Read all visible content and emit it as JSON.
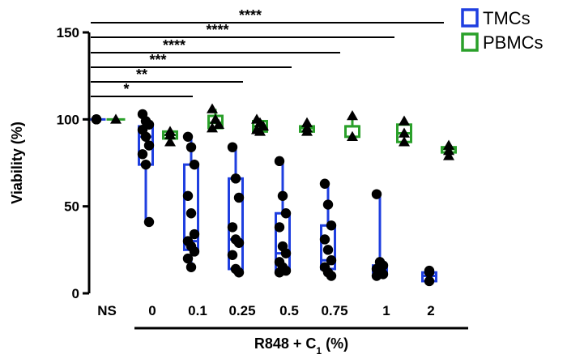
{
  "chart_data": {
    "type": "box",
    "ylabel": "Viability (%)",
    "xlabel_main": "R848 + C",
    "xlabel_sub": "1",
    "xlabel_unit": " (%)",
    "ylim": [
      0,
      150
    ],
    "yticks": [
      0,
      50,
      100,
      150
    ],
    "categories": [
      "NS",
      "0",
      "0.1",
      "0.25",
      "0.5",
      "0.75",
      "1",
      "2"
    ],
    "legend": [
      {
        "name": "TMCs",
        "color": "#1f3fe0"
      },
      {
        "name": "PBMCs",
        "color": "#2aa02a"
      }
    ],
    "series": [
      {
        "name": "TMCs",
        "color": "#1f3fe0",
        "marker": "circle",
        "groups": [
          {
            "min": 100,
            "q1": 100,
            "median": 100,
            "q3": 100,
            "max": 100,
            "points": [
              100,
              100,
              100
            ]
          },
          {
            "min": 41,
            "q1": 74,
            "median": 90,
            "q3": 96,
            "max": 103,
            "points": [
              103,
              99,
              97,
              94,
              90,
              85,
              80,
              74,
              41
            ]
          },
          {
            "min": 15,
            "q1": 25,
            "median": 30,
            "q3": 74,
            "max": 90,
            "points": [
              90,
              84,
              74,
              56,
              46,
              34,
              30,
              27,
              24,
              20,
              15
            ]
          },
          {
            "min": 12,
            "q1": 14,
            "median": 31,
            "q3": 66,
            "max": 84,
            "points": [
              84,
              66,
              55,
              38,
              31,
              29,
              22,
              14,
              12
            ]
          },
          {
            "min": 12,
            "q1": 13,
            "median": 23,
            "q3": 46,
            "max": 76,
            "points": [
              76,
              56,
              46,
              38,
              27,
              23,
              18,
              15,
              13,
              12
            ]
          },
          {
            "min": 10,
            "q1": 14,
            "median": 19,
            "q3": 39,
            "max": 63,
            "points": [
              63,
              51,
              39,
              31,
              25,
              19,
              15,
              12,
              10
            ]
          },
          {
            "min": 10,
            "q1": 12,
            "median": 14,
            "q3": 16,
            "max": 57,
            "points": [
              57,
              18,
              16,
              14,
              12,
              11,
              10
            ]
          },
          {
            "min": 7,
            "q1": 7,
            "median": 10,
            "q3": 12,
            "max": 13,
            "points": [
              13,
              12,
              7
            ]
          }
        ]
      },
      {
        "name": "PBMCs",
        "color": "#2aa02a",
        "marker": "triangle",
        "groups": [
          {
            "min": 100,
            "q1": 100,
            "median": 100,
            "q3": 100,
            "max": 100,
            "points": [
              100
            ]
          },
          {
            "min": 87,
            "q1": 89,
            "median": 91,
            "q3": 93,
            "max": 94,
            "points": [
              93,
              91,
              87
            ]
          },
          {
            "min": 95,
            "q1": 95,
            "median": 98,
            "q3": 102,
            "max": 106,
            "points": [
              106,
              100,
              97,
              95
            ]
          },
          {
            "min": 93,
            "q1": 93,
            "median": 96,
            "q3": 99,
            "max": 100,
            "points": [
              100,
              98,
              96,
              94,
              93
            ]
          },
          {
            "min": 93,
            "q1": 93,
            "median": 95,
            "q3": 96,
            "max": 98,
            "points": [
              98,
              95,
              93
            ]
          },
          {
            "min": 90,
            "q1": 90,
            "median": 96,
            "q3": 96,
            "max": 102,
            "points": [
              102,
              90
            ]
          },
          {
            "min": 87,
            "q1": 87,
            "median": 92,
            "q3": 97,
            "max": 99,
            "points": [
              99,
              92,
              87
            ]
          },
          {
            "min": 79,
            "q1": 81,
            "median": 83,
            "q3": 84,
            "max": 85,
            "points": [
              85,
              82,
              79
            ]
          }
        ]
      }
    ],
    "significance": [
      {
        "label": "*",
        "from": "NS",
        "to": "0.1"
      },
      {
        "label": "**",
        "from": "NS",
        "to": "0.25"
      },
      {
        "label": "***",
        "from": "NS",
        "to": "0.5"
      },
      {
        "label": "****",
        "from": "NS",
        "to": "0.75"
      },
      {
        "label": "****",
        "from": "NS",
        "to": "1"
      },
      {
        "label": "****",
        "from": "NS",
        "to": "2"
      }
    ]
  }
}
